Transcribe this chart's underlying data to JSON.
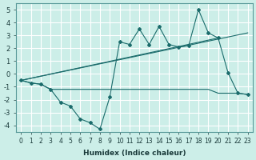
{
  "title": "",
  "xlabel": "Humidex (Indice chaleur)",
  "ylabel": "",
  "background_color": "#cceee8",
  "grid_color": "#ffffff",
  "line_color": "#1a6b6b",
  "xlim": [
    -0.5,
    23.5
  ],
  "ylim": [
    -4.5,
    5.5
  ],
  "xticks": [
    0,
    1,
    2,
    3,
    4,
    5,
    6,
    7,
    8,
    9,
    10,
    11,
    12,
    13,
    14,
    15,
    16,
    17,
    18,
    19,
    20,
    21,
    22,
    23
  ],
  "yticks": [
    -4,
    -3,
    -2,
    -1,
    0,
    1,
    2,
    3,
    4,
    5
  ],
  "series1_x": [
    0,
    1,
    2,
    3,
    4,
    5,
    6,
    7,
    8,
    9,
    10,
    11,
    12,
    13,
    14,
    15,
    16,
    17,
    18,
    19,
    20,
    21,
    22,
    23
  ],
  "series1_y": [
    -0.5,
    -0.7,
    -0.8,
    -1.2,
    -2.2,
    -2.5,
    -3.5,
    -3.8,
    -4.3,
    -1.8,
    2.5,
    2.3,
    3.5,
    2.3,
    3.7,
    2.3,
    2.1,
    2.2,
    5.0,
    3.2,
    2.8,
    0.1,
    -1.5,
    -1.6
  ],
  "series2_x": [
    0,
    1,
    2,
    3,
    4,
    5,
    6,
    7,
    8,
    9,
    10,
    11,
    12,
    13,
    14,
    15,
    16,
    17,
    18,
    19,
    20,
    21,
    22,
    23
  ],
  "series2_y": [
    -0.5,
    -0.7,
    -0.8,
    -1.2,
    -1.2,
    -1.2,
    -1.2,
    -1.2,
    -1.2,
    -1.2,
    -1.2,
    -1.2,
    -1.2,
    -1.2,
    -1.2,
    -1.2,
    -1.2,
    -1.2,
    -1.2,
    -1.2,
    -1.5,
    -1.5,
    -1.5,
    -1.6
  ],
  "series3_x": [
    0,
    23
  ],
  "series3_y": [
    -0.5,
    3.2
  ],
  "series4_x": [
    0,
    20
  ],
  "series4_y": [
    -0.5,
    2.8
  ]
}
